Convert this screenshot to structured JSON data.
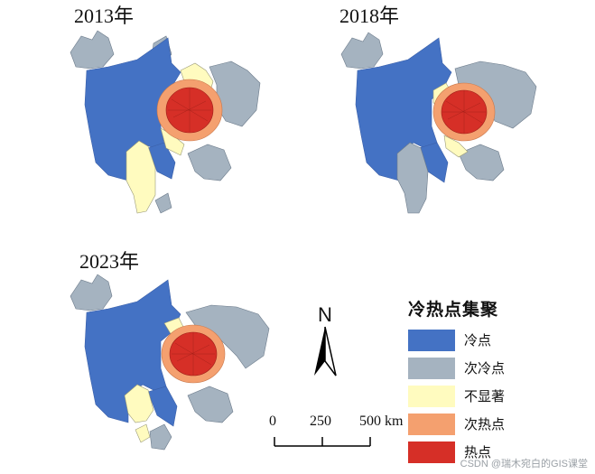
{
  "panels": [
    {
      "year": "2013年"
    },
    {
      "year": "2018年"
    },
    {
      "year": "2023年"
    }
  ],
  "legend": {
    "title": "冷热点集聚",
    "items": [
      {
        "label": "冷点",
        "color": "#4472c4"
      },
      {
        "label": "次冷点",
        "color": "#a5b3c0"
      },
      {
        "label": "不显著",
        "color": "#fffbbf"
      },
      {
        "label": "次热点",
        "color": "#f4a06f"
      },
      {
        "label": "热点",
        "color": "#d62f27"
      }
    ]
  },
  "north_arrow": {
    "label": "N"
  },
  "scale": {
    "ticks": [
      "0",
      "250",
      "500 km"
    ]
  },
  "watermark": "CSDN @瑞木宛白的GIS课堂",
  "colors": {
    "cold": "#4472c4",
    "sub_cold": "#a5b3c0",
    "not_significant": "#fffbbf",
    "sub_hot": "#f4a06f",
    "hot": "#d62f27",
    "boundary": "#6b7a8a"
  }
}
